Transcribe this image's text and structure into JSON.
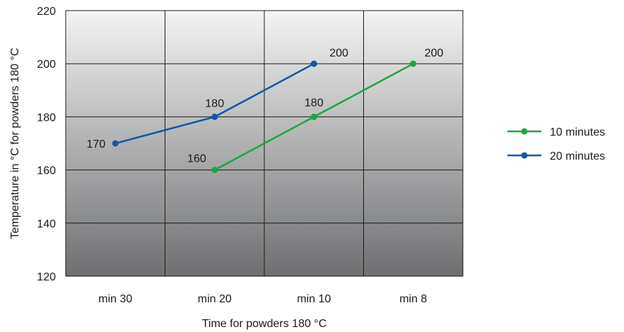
{
  "chart_data": {
    "type": "line",
    "categories": [
      "min 30",
      "min 20",
      "min 10",
      "min 8"
    ],
    "series": [
      {
        "name": "10 minutes",
        "color": "#1ea63c",
        "values": [
          null,
          160,
          180,
          200
        ]
      },
      {
        "name": "20 minutes",
        "color": "#1357a6",
        "values": [
          170,
          180,
          200,
          null
        ]
      }
    ],
    "xlabel": "Time for powders 180 °C",
    "ylabel": "Temperature in °C for powders 180 °C",
    "ylim": [
      120,
      220
    ],
    "yticks": [
      120,
      140,
      160,
      180,
      200,
      220
    ],
    "grid": true,
    "legend_position": "right",
    "background_gradient": [
      "#f4f4f4",
      "#6e6f71"
    ]
  }
}
